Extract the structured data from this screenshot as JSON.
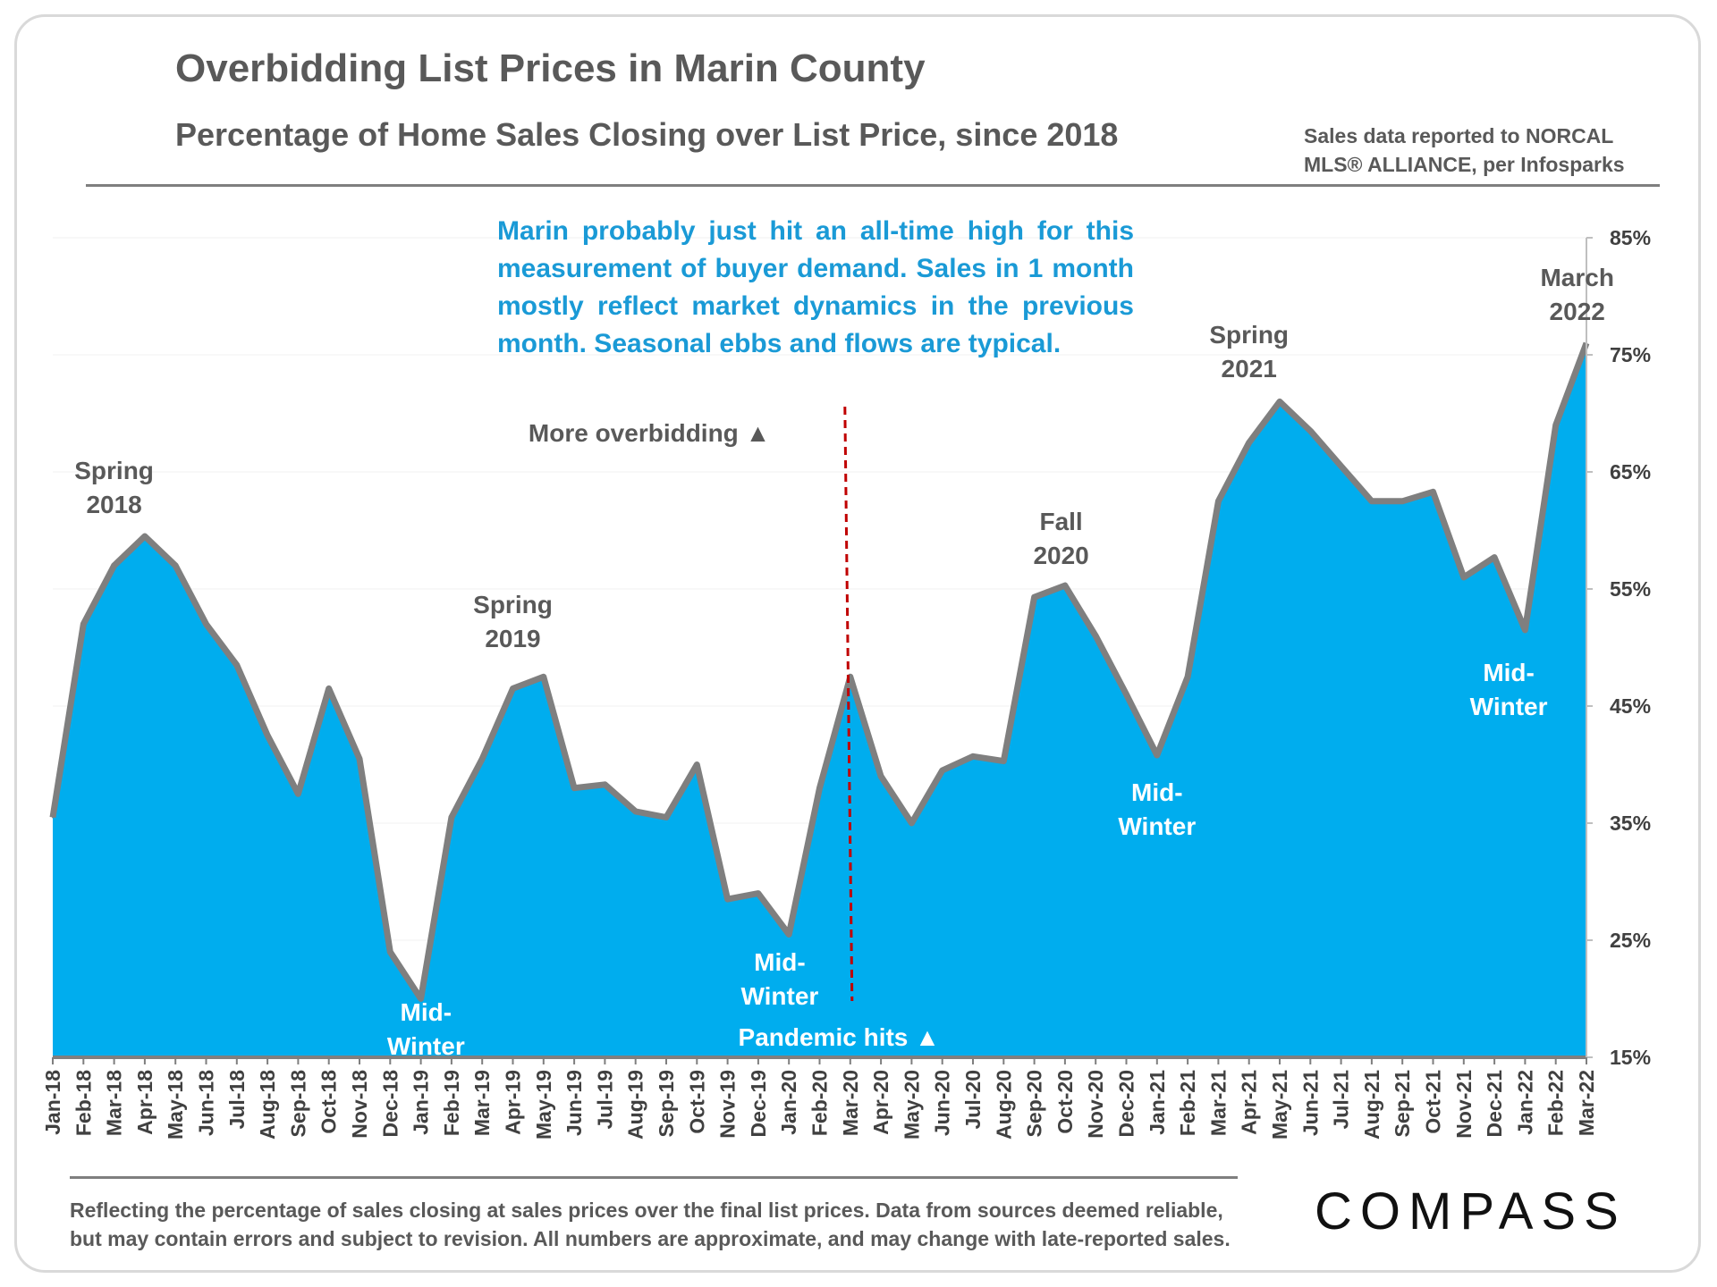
{
  "header": {
    "title": "Overbidding List Prices in Marin County",
    "subtitle": "Percentage of Home Sales Closing over List Price, since 2018",
    "source_line1": "Sales data reported to NORCAL",
    "source_line2": "MLS® ALLIANCE, per Infosparks"
  },
  "note": "Marin probably just hit an all-time high for this measurement of buyer demand. Sales in 1 month mostly reflect market dynamics in the previous month. Seasonal ebbs and flows are typical.",
  "footer": {
    "line1": "Reflecting the percentage of sales closing at sales prices over the final list prices. Data from sources deemed reliable,",
    "line2": "but may contain errors and subject to revision. All numbers are approximate, and may change with late-reported sales."
  },
  "logo": "COMPASS",
  "colors": {
    "area": "#00adee",
    "line": "#7f7f7f",
    "marker": "#c00000",
    "note": "#1a9ad6"
  },
  "chart_data": {
    "type": "area",
    "title": "Overbidding List Prices in Marin County",
    "subtitle": "Percentage of Home Sales Closing over List Price, since 2018",
    "xlabel": "",
    "ylabel": "",
    "y_axis_position": "right",
    "ylim": [
      15,
      85
    ],
    "y_ticks": [
      15,
      25,
      35,
      45,
      55,
      65,
      75,
      85
    ],
    "y_tick_labels": [
      "15%",
      "25%",
      "35%",
      "45%",
      "55%",
      "65%",
      "75%",
      "85%"
    ],
    "categories": [
      "Jan-18",
      "Feb-18",
      "Mar-18",
      "Apr-18",
      "May-18",
      "Jun-18",
      "Jul-18",
      "Aug-18",
      "Sep-18",
      "Oct-18",
      "Nov-18",
      "Dec-18",
      "Jan-19",
      "Feb-19",
      "Mar-19",
      "Apr-19",
      "May-19",
      "Jun-19",
      "Jul-19",
      "Aug-19",
      "Sep-19",
      "Oct-19",
      "Nov-19",
      "Dec-19",
      "Jan-20",
      "Feb-20",
      "Mar-20",
      "Apr-20",
      "May-20",
      "Jun-20",
      "Jul-20",
      "Aug-20",
      "Sep-20",
      "Oct-20",
      "Nov-20",
      "Dec-20",
      "Jan-21",
      "Feb-21",
      "Mar-21",
      "Apr-21",
      "May-21",
      "Jun-21",
      "Jul-21",
      "Aug-21",
      "Sep-21",
      "Oct-21",
      "Nov-21",
      "Dec-21",
      "Jan-22",
      "Feb-22",
      "Mar-22"
    ],
    "series": [
      {
        "name": "Percentage of Home Sales Closing over List Price",
        "values": [
          35.5,
          52,
          57,
          59.5,
          57,
          52,
          48.5,
          42.5,
          37.5,
          46.5,
          40.5,
          24,
          20,
          35.5,
          40.5,
          46.5,
          47.5,
          38,
          38.3,
          36,
          35.5,
          40,
          28.5,
          29,
          25.5,
          38,
          47.5,
          39,
          35,
          39.5,
          40.7,
          40.3,
          54.3,
          55.3,
          51,
          46,
          40.8,
          47.5,
          62.5,
          67.5,
          71,
          68.5,
          65.5,
          62.5,
          62.5,
          63.3,
          56,
          57.7,
          51.5,
          69,
          76
        ]
      }
    ],
    "annotations": [
      {
        "text": [
          "Spring",
          "2018"
        ],
        "category": "Mar-18",
        "style": "dark"
      },
      {
        "text": [
          "Mid-",
          "Winter"
        ],
        "category": "Dec-18",
        "style": "white"
      },
      {
        "text": [
          "Spring",
          "2019"
        ],
        "category": "Apr-19",
        "style": "dark"
      },
      {
        "text": [
          "Mid-",
          "Winter"
        ],
        "category": "Dec-19",
        "style": "white"
      },
      {
        "text": [
          "Fall",
          "2020"
        ],
        "category": "Sep-20",
        "style": "dark"
      },
      {
        "text": [
          "Mid-",
          "Winter"
        ],
        "category": "Jan-21",
        "style": "white"
      },
      {
        "text": [
          "Spring",
          "2021"
        ],
        "category": "Apr-21",
        "style": "dark"
      },
      {
        "text": [
          "Mid-",
          "Winter"
        ],
        "category": "Dec-21",
        "style": "white"
      },
      {
        "text": [
          "March",
          "2022"
        ],
        "category": "Feb-22",
        "style": "dark"
      },
      {
        "text": [
          "More overbidding ▲"
        ],
        "category": "Jun-19",
        "style": "dark"
      },
      {
        "text": [
          "Pandemic hits ▲"
        ],
        "category": "Jan-20",
        "style": "white"
      }
    ],
    "event_marker": {
      "category": "Mar-20",
      "label": "Pandemic hits",
      "style": "dashed"
    }
  }
}
